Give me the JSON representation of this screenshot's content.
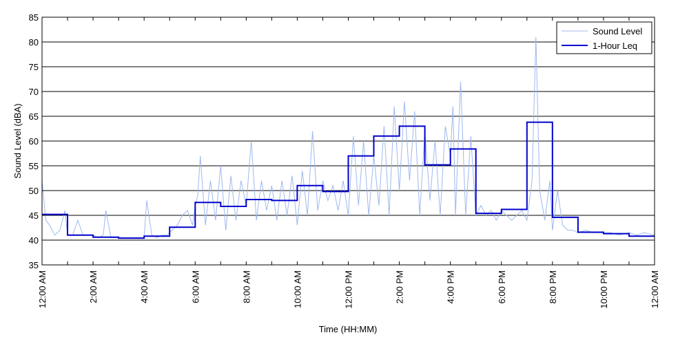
{
  "chart_data": {
    "type": "line",
    "title": "",
    "xlabel": "Time (HH:MM)",
    "ylabel": "Sound Level (dBA)",
    "xlim_hours": [
      0,
      24
    ],
    "ylim": [
      35,
      85
    ],
    "yticks": [
      35,
      40,
      45,
      50,
      55,
      60,
      65,
      70,
      75,
      80,
      85
    ],
    "xtick_hours": [
      0,
      2,
      4,
      6,
      8,
      10,
      12,
      14,
      16,
      18,
      20,
      22,
      24
    ],
    "xtick_labels": [
      "12:00 AM",
      "2:00 AM",
      "4:00 AM",
      "6:00 AM",
      "8:00 AM",
      "10:00 AM",
      "12:00 PM",
      "2:00 PM",
      "4:00 PM",
      "6:00 PM",
      "8:00 PM",
      "10:00 PM",
      "12:00 AM"
    ],
    "grid": "horizontal",
    "legend_position": "top-right",
    "series": [
      {
        "name": "Sound Level",
        "color": "#9db8ef",
        "x_hours": [
          0,
          0.15,
          0.3,
          0.5,
          0.7,
          0.9,
          1.0,
          1.2,
          1.4,
          1.6,
          1.8,
          2.0,
          2.2,
          2.4,
          2.5,
          2.7,
          2.9,
          3.1,
          3.3,
          3.5,
          3.7,
          3.9,
          4.0,
          4.1,
          4.3,
          4.5,
          4.7,
          4.9,
          5.1,
          5.3,
          5.5,
          5.7,
          5.9,
          6.0,
          6.1,
          6.2,
          6.4,
          6.6,
          6.8,
          7.0,
          7.2,
          7.4,
          7.6,
          7.8,
          8.0,
          8.2,
          8.4,
          8.6,
          8.8,
          9.0,
          9.2,
          9.4,
          9.6,
          9.8,
          10.0,
          10.2,
          10.4,
          10.6,
          10.8,
          11.0,
          11.2,
          11.4,
          11.6,
          11.8,
          12.0,
          12.2,
          12.4,
          12.6,
          12.8,
          13.0,
          13.2,
          13.4,
          13.6,
          13.8,
          14.0,
          14.2,
          14.4,
          14.6,
          14.8,
          15.0,
          15.2,
          15.4,
          15.6,
          15.8,
          16.0,
          16.1,
          16.2,
          16.4,
          16.6,
          16.8,
          17.0,
          17.2,
          17.4,
          17.6,
          17.8,
          18.0,
          18.2,
          18.4,
          18.6,
          18.8,
          19.0,
          19.2,
          19.35,
          19.5,
          19.7,
          19.9,
          20.0,
          20.2,
          20.4,
          20.6,
          20.8,
          21.0,
          21.3,
          21.6,
          22.0,
          22.3,
          22.6,
          23.0,
          23.3,
          23.6,
          24.0
        ],
        "values": [
          52,
          44,
          43,
          41,
          42,
          46,
          41,
          41,
          44,
          41,
          41,
          41,
          40.5,
          41,
          46,
          40.5,
          40.5,
          40.5,
          40.5,
          40.5,
          40.5,
          40.5,
          40.5,
          48,
          41,
          40.5,
          41,
          41,
          42,
          43,
          45,
          46,
          43,
          47,
          49,
          57,
          43,
          52,
          44,
          55,
          42,
          53,
          44,
          52,
          47,
          60,
          44,
          52,
          46,
          51,
          44,
          52,
          45,
          53,
          43,
          54,
          45,
          62,
          46,
          52,
          48,
          51,
          46,
          52,
          45,
          61,
          47,
          60,
          45,
          57,
          47,
          63,
          45,
          67,
          50,
          68,
          52,
          66,
          45,
          62,
          48,
          60,
          45,
          63,
          57,
          67,
          45,
          72,
          45,
          61,
          45,
          47,
          45,
          46,
          44,
          46,
          45,
          44,
          45,
          46,
          44,
          52,
          81,
          50,
          44,
          52,
          42,
          50,
          43,
          42,
          42,
          41.5,
          42,
          41.5,
          41.5,
          41.5,
          41,
          41.5,
          41,
          41.5,
          41
        ]
      },
      {
        "name": "1-Hour Leq",
        "color": "#0000cc",
        "step_hours": [
          0,
          1,
          2,
          3,
          4,
          5,
          6,
          7,
          8,
          9,
          10,
          11,
          12,
          13,
          14,
          15,
          16,
          17,
          18,
          19,
          20,
          21,
          22,
          23
        ],
        "values": [
          45.2,
          41.0,
          40.6,
          40.4,
          40.8,
          42.6,
          47.6,
          46.8,
          48.2,
          48.0,
          51.0,
          49.8,
          57.0,
          61.0,
          63.0,
          55.2,
          58.4,
          45.4,
          46.2,
          63.8,
          44.6,
          41.6,
          41.3,
          40.8
        ]
      }
    ]
  }
}
